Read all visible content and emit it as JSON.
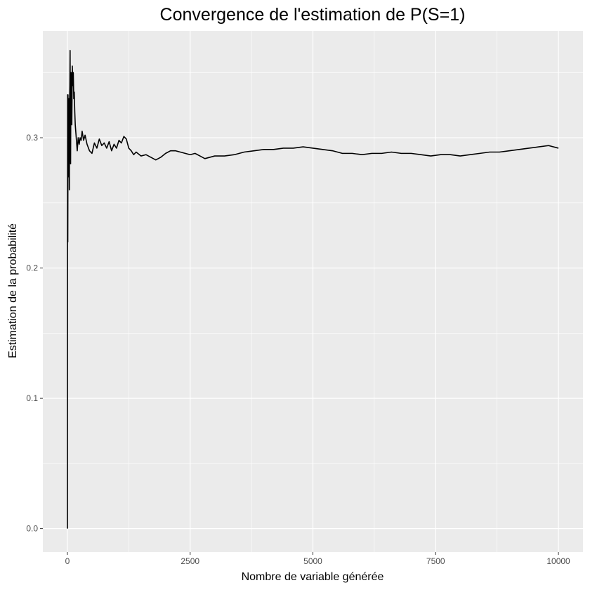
{
  "chart_data": {
    "type": "line",
    "title": "Convergence de l'estimation de P(S=1)",
    "xlabel": "Nombre de variable générée",
    "ylabel": "Estimation de la probabilité",
    "xlim": [
      -500,
      10500
    ],
    "ylim": [
      -0.018,
      0.382
    ],
    "x_ticks": [
      0,
      2500,
      5000,
      7500,
      10000
    ],
    "x_tick_labels": [
      "0",
      "2500",
      "5000",
      "7500",
      "10000"
    ],
    "y_ticks": [
      0.0,
      0.1,
      0.2,
      0.3
    ],
    "y_tick_labels": [
      "0.0",
      "0.1",
      "0.2",
      "0.3"
    ],
    "grid": true,
    "background": "#ebebeb",
    "line_color": "#000000",
    "series": [
      {
        "x": [
          1,
          2,
          3,
          4,
          5,
          6,
          8,
          10,
          12,
          15,
          18,
          20,
          25,
          30,
          35,
          40,
          45,
          50,
          55,
          60,
          65,
          70,
          75,
          80,
          90,
          100,
          110,
          120,
          130,
          140,
          150,
          160,
          170,
          180,
          190,
          200,
          220,
          240,
          260,
          280,
          300,
          330,
          360,
          400,
          450,
          500,
          550,
          600,
          650,
          700,
          750,
          800,
          850,
          900,
          950,
          1000,
          1050,
          1100,
          1150,
          1200,
          1250,
          1300,
          1350,
          1400,
          1500,
          1600,
          1700,
          1800,
          1900,
          2000,
          2100,
          2200,
          2300,
          2400,
          2500,
          2600,
          2700,
          2800,
          2900,
          3000,
          3200,
          3400,
          3600,
          3800,
          4000,
          4200,
          4400,
          4600,
          4800,
          5000,
          5200,
          5400,
          5600,
          5800,
          6000,
          6200,
          6400,
          6600,
          6800,
          7000,
          7200,
          7400,
          7600,
          7800,
          8000,
          8200,
          8400,
          8600,
          8800,
          9000,
          9200,
          9400,
          9600,
          9800,
          10000
        ],
        "y": [
          0.0,
          0.22,
          0.25,
          0.29,
          0.333,
          0.27,
          0.22,
          0.26,
          0.333,
          0.3,
          0.32,
          0.27,
          0.33,
          0.3,
          0.32,
          0.26,
          0.33,
          0.34,
          0.367,
          0.3,
          0.28,
          0.33,
          0.35,
          0.34,
          0.31,
          0.355,
          0.34,
          0.35,
          0.33,
          0.335,
          0.32,
          0.31,
          0.305,
          0.3,
          0.295,
          0.29,
          0.3,
          0.295,
          0.3,
          0.298,
          0.305,
          0.298,
          0.302,
          0.295,
          0.29,
          0.288,
          0.296,
          0.292,
          0.299,
          0.294,
          0.296,
          0.292,
          0.297,
          0.29,
          0.295,
          0.292,
          0.298,
          0.296,
          0.301,
          0.299,
          0.292,
          0.29,
          0.287,
          0.289,
          0.286,
          0.287,
          0.285,
          0.283,
          0.285,
          0.288,
          0.29,
          0.29,
          0.289,
          0.288,
          0.287,
          0.288,
          0.286,
          0.284,
          0.285,
          0.286,
          0.286,
          0.287,
          0.289,
          0.29,
          0.291,
          0.291,
          0.292,
          0.292,
          0.293,
          0.292,
          0.291,
          0.29,
          0.288,
          0.288,
          0.287,
          0.288,
          0.288,
          0.289,
          0.288,
          0.288,
          0.287,
          0.286,
          0.287,
          0.287,
          0.286,
          0.287,
          0.288,
          0.289,
          0.289,
          0.29,
          0.291,
          0.292,
          0.293,
          0.294,
          0.292
        ]
      }
    ]
  }
}
